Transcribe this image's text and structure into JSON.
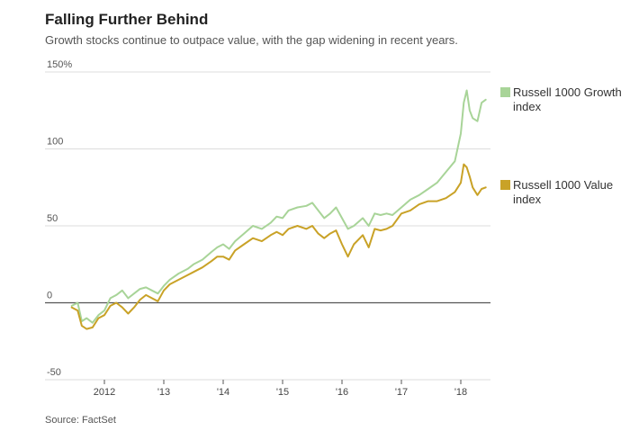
{
  "header": {
    "title": "Falling Further Behind",
    "subtitle": "Growth stocks continue to outpace value, with the gap widening in recent years."
  },
  "footer": {
    "source": "Source: FactSet"
  },
  "colors": {
    "growth": "#a8d498",
    "value": "#c9a227",
    "grid": "#dddddd",
    "zero": "#555555"
  },
  "chart_data": {
    "type": "line",
    "title": "Falling Further Behind",
    "subtitle": "Growth stocks continue to outpace value, with the gap widening in recent years.",
    "xlabel": "",
    "ylabel": "",
    "ylim": [
      -50,
      150
    ],
    "xlim": [
      2011.0,
      2018.5
    ],
    "y_ticks": [
      {
        "value": 150,
        "label": "150%"
      },
      {
        "value": 100,
        "label": "100"
      },
      {
        "value": 50,
        "label": "50"
      },
      {
        "value": 0,
        "label": "0"
      },
      {
        "value": -50,
        "label": "-50"
      }
    ],
    "x_ticks": [
      {
        "value": 2012,
        "label": "2012"
      },
      {
        "value": 2013,
        "label": "'13"
      },
      {
        "value": 2014,
        "label": "'14"
      },
      {
        "value": 2015,
        "label": "'15"
      },
      {
        "value": 2016,
        "label": "'16"
      },
      {
        "value": 2017,
        "label": "'17"
      },
      {
        "value": 2018,
        "label": "'18"
      }
    ],
    "grid": "horizontal",
    "legend_position": "right",
    "series": [
      {
        "name": "Russell 1000 Growth index",
        "color": "#a8d498",
        "points": [
          [
            2011.45,
            -2
          ],
          [
            2011.55,
            0
          ],
          [
            2011.62,
            -12
          ],
          [
            2011.7,
            -10
          ],
          [
            2011.8,
            -13
          ],
          [
            2011.9,
            -8
          ],
          [
            2012.0,
            -5
          ],
          [
            2012.1,
            3
          ],
          [
            2012.2,
            5
          ],
          [
            2012.3,
            8
          ],
          [
            2012.4,
            3
          ],
          [
            2012.5,
            6
          ],
          [
            2012.6,
            9
          ],
          [
            2012.7,
            10
          ],
          [
            2012.8,
            8
          ],
          [
            2012.9,
            6
          ],
          [
            2013.0,
            11
          ],
          [
            2013.1,
            15
          ],
          [
            2013.25,
            19
          ],
          [
            2013.4,
            22
          ],
          [
            2013.5,
            25
          ],
          [
            2013.65,
            28
          ],
          [
            2013.8,
            33
          ],
          [
            2013.9,
            36
          ],
          [
            2014.0,
            38
          ],
          [
            2014.1,
            35
          ],
          [
            2014.2,
            40
          ],
          [
            2014.35,
            45
          ],
          [
            2014.5,
            50
          ],
          [
            2014.65,
            48
          ],
          [
            2014.8,
            52
          ],
          [
            2014.9,
            56
          ],
          [
            2015.0,
            55
          ],
          [
            2015.1,
            60
          ],
          [
            2015.25,
            62
          ],
          [
            2015.4,
            63
          ],
          [
            2015.5,
            65
          ],
          [
            2015.6,
            60
          ],
          [
            2015.7,
            55
          ],
          [
            2015.8,
            58
          ],
          [
            2015.9,
            62
          ],
          [
            2016.0,
            55
          ],
          [
            2016.1,
            48
          ],
          [
            2016.2,
            50
          ],
          [
            2016.35,
            55
          ],
          [
            2016.45,
            50
          ],
          [
            2016.55,
            58
          ],
          [
            2016.65,
            57
          ],
          [
            2016.75,
            58
          ],
          [
            2016.85,
            57
          ],
          [
            2017.0,
            62
          ],
          [
            2017.15,
            67
          ],
          [
            2017.3,
            70
          ],
          [
            2017.45,
            74
          ],
          [
            2017.6,
            78
          ],
          [
            2017.75,
            85
          ],
          [
            2017.9,
            92
          ],
          [
            2018.0,
            110
          ],
          [
            2018.05,
            130
          ],
          [
            2018.1,
            138
          ],
          [
            2018.15,
            125
          ],
          [
            2018.2,
            120
          ],
          [
            2018.28,
            118
          ],
          [
            2018.35,
            130
          ],
          [
            2018.42,
            132
          ]
        ]
      },
      {
        "name": "Russell 1000 Value index",
        "color": "#c9a227",
        "points": [
          [
            2011.45,
            -3
          ],
          [
            2011.55,
            -5
          ],
          [
            2011.62,
            -15
          ],
          [
            2011.7,
            -17
          ],
          [
            2011.8,
            -16
          ],
          [
            2011.9,
            -10
          ],
          [
            2012.0,
            -8
          ],
          [
            2012.1,
            -2
          ],
          [
            2012.2,
            0
          ],
          [
            2012.3,
            -3
          ],
          [
            2012.4,
            -7
          ],
          [
            2012.5,
            -3
          ],
          [
            2012.6,
            2
          ],
          [
            2012.7,
            5
          ],
          [
            2012.8,
            3
          ],
          [
            2012.9,
            1
          ],
          [
            2013.0,
            8
          ],
          [
            2013.1,
            12
          ],
          [
            2013.25,
            15
          ],
          [
            2013.4,
            18
          ],
          [
            2013.5,
            20
          ],
          [
            2013.65,
            23
          ],
          [
            2013.8,
            27
          ],
          [
            2013.9,
            30
          ],
          [
            2014.0,
            30
          ],
          [
            2014.1,
            28
          ],
          [
            2014.2,
            34
          ],
          [
            2014.35,
            38
          ],
          [
            2014.5,
            42
          ],
          [
            2014.65,
            40
          ],
          [
            2014.8,
            44
          ],
          [
            2014.9,
            46
          ],
          [
            2015.0,
            44
          ],
          [
            2015.1,
            48
          ],
          [
            2015.25,
            50
          ],
          [
            2015.4,
            48
          ],
          [
            2015.5,
            50
          ],
          [
            2015.6,
            45
          ],
          [
            2015.7,
            42
          ],
          [
            2015.8,
            45
          ],
          [
            2015.9,
            47
          ],
          [
            2016.0,
            38
          ],
          [
            2016.1,
            30
          ],
          [
            2016.2,
            38
          ],
          [
            2016.35,
            44
          ],
          [
            2016.45,
            36
          ],
          [
            2016.55,
            48
          ],
          [
            2016.65,
            47
          ],
          [
            2016.75,
            48
          ],
          [
            2016.85,
            50
          ],
          [
            2017.0,
            58
          ],
          [
            2017.15,
            60
          ],
          [
            2017.3,
            64
          ],
          [
            2017.45,
            66
          ],
          [
            2017.6,
            66
          ],
          [
            2017.75,
            68
          ],
          [
            2017.9,
            72
          ],
          [
            2018.0,
            78
          ],
          [
            2018.05,
            90
          ],
          [
            2018.1,
            88
          ],
          [
            2018.15,
            82
          ],
          [
            2018.2,
            75
          ],
          [
            2018.28,
            70
          ],
          [
            2018.35,
            74
          ],
          [
            2018.42,
            75
          ]
        ]
      }
    ]
  }
}
